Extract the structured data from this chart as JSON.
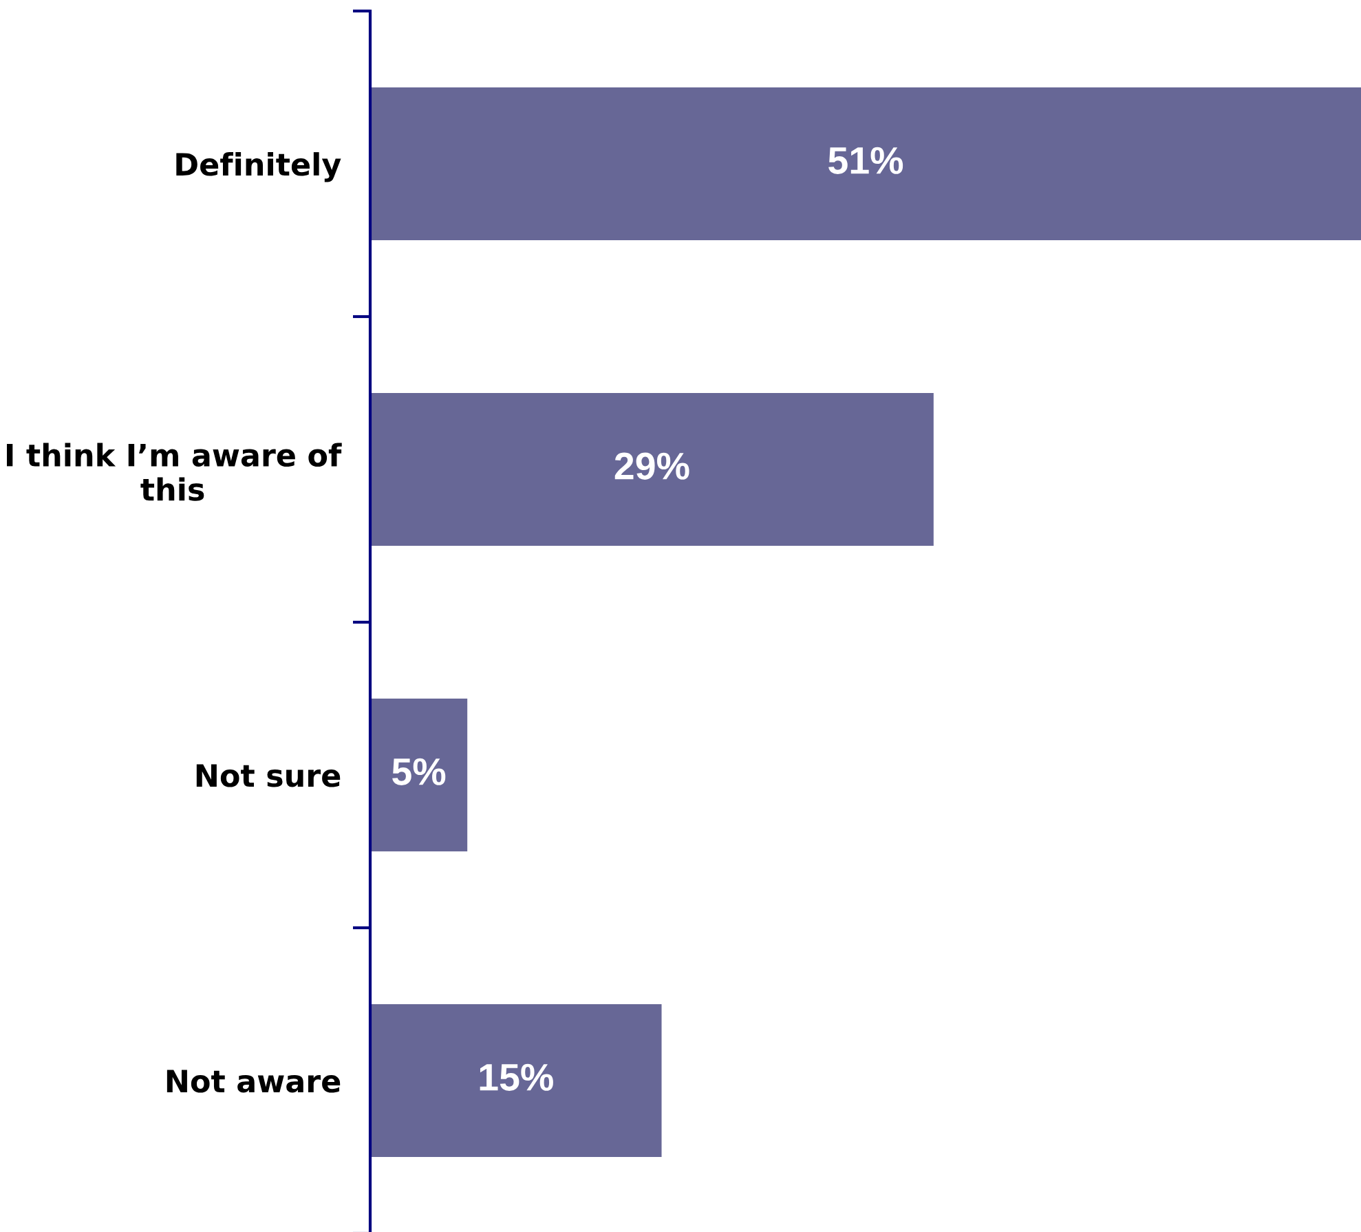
{
  "chart_data": {
    "type": "bar",
    "orientation": "horizontal",
    "categories": [
      "Definitely",
      "I think I’m aware of this",
      "Not sure",
      "Not aware"
    ],
    "values": [
      51,
      29,
      5,
      15
    ],
    "color": "#676796",
    "value_labels": [
      "51%",
      "29%",
      "5%",
      "15%"
    ]
  }
}
